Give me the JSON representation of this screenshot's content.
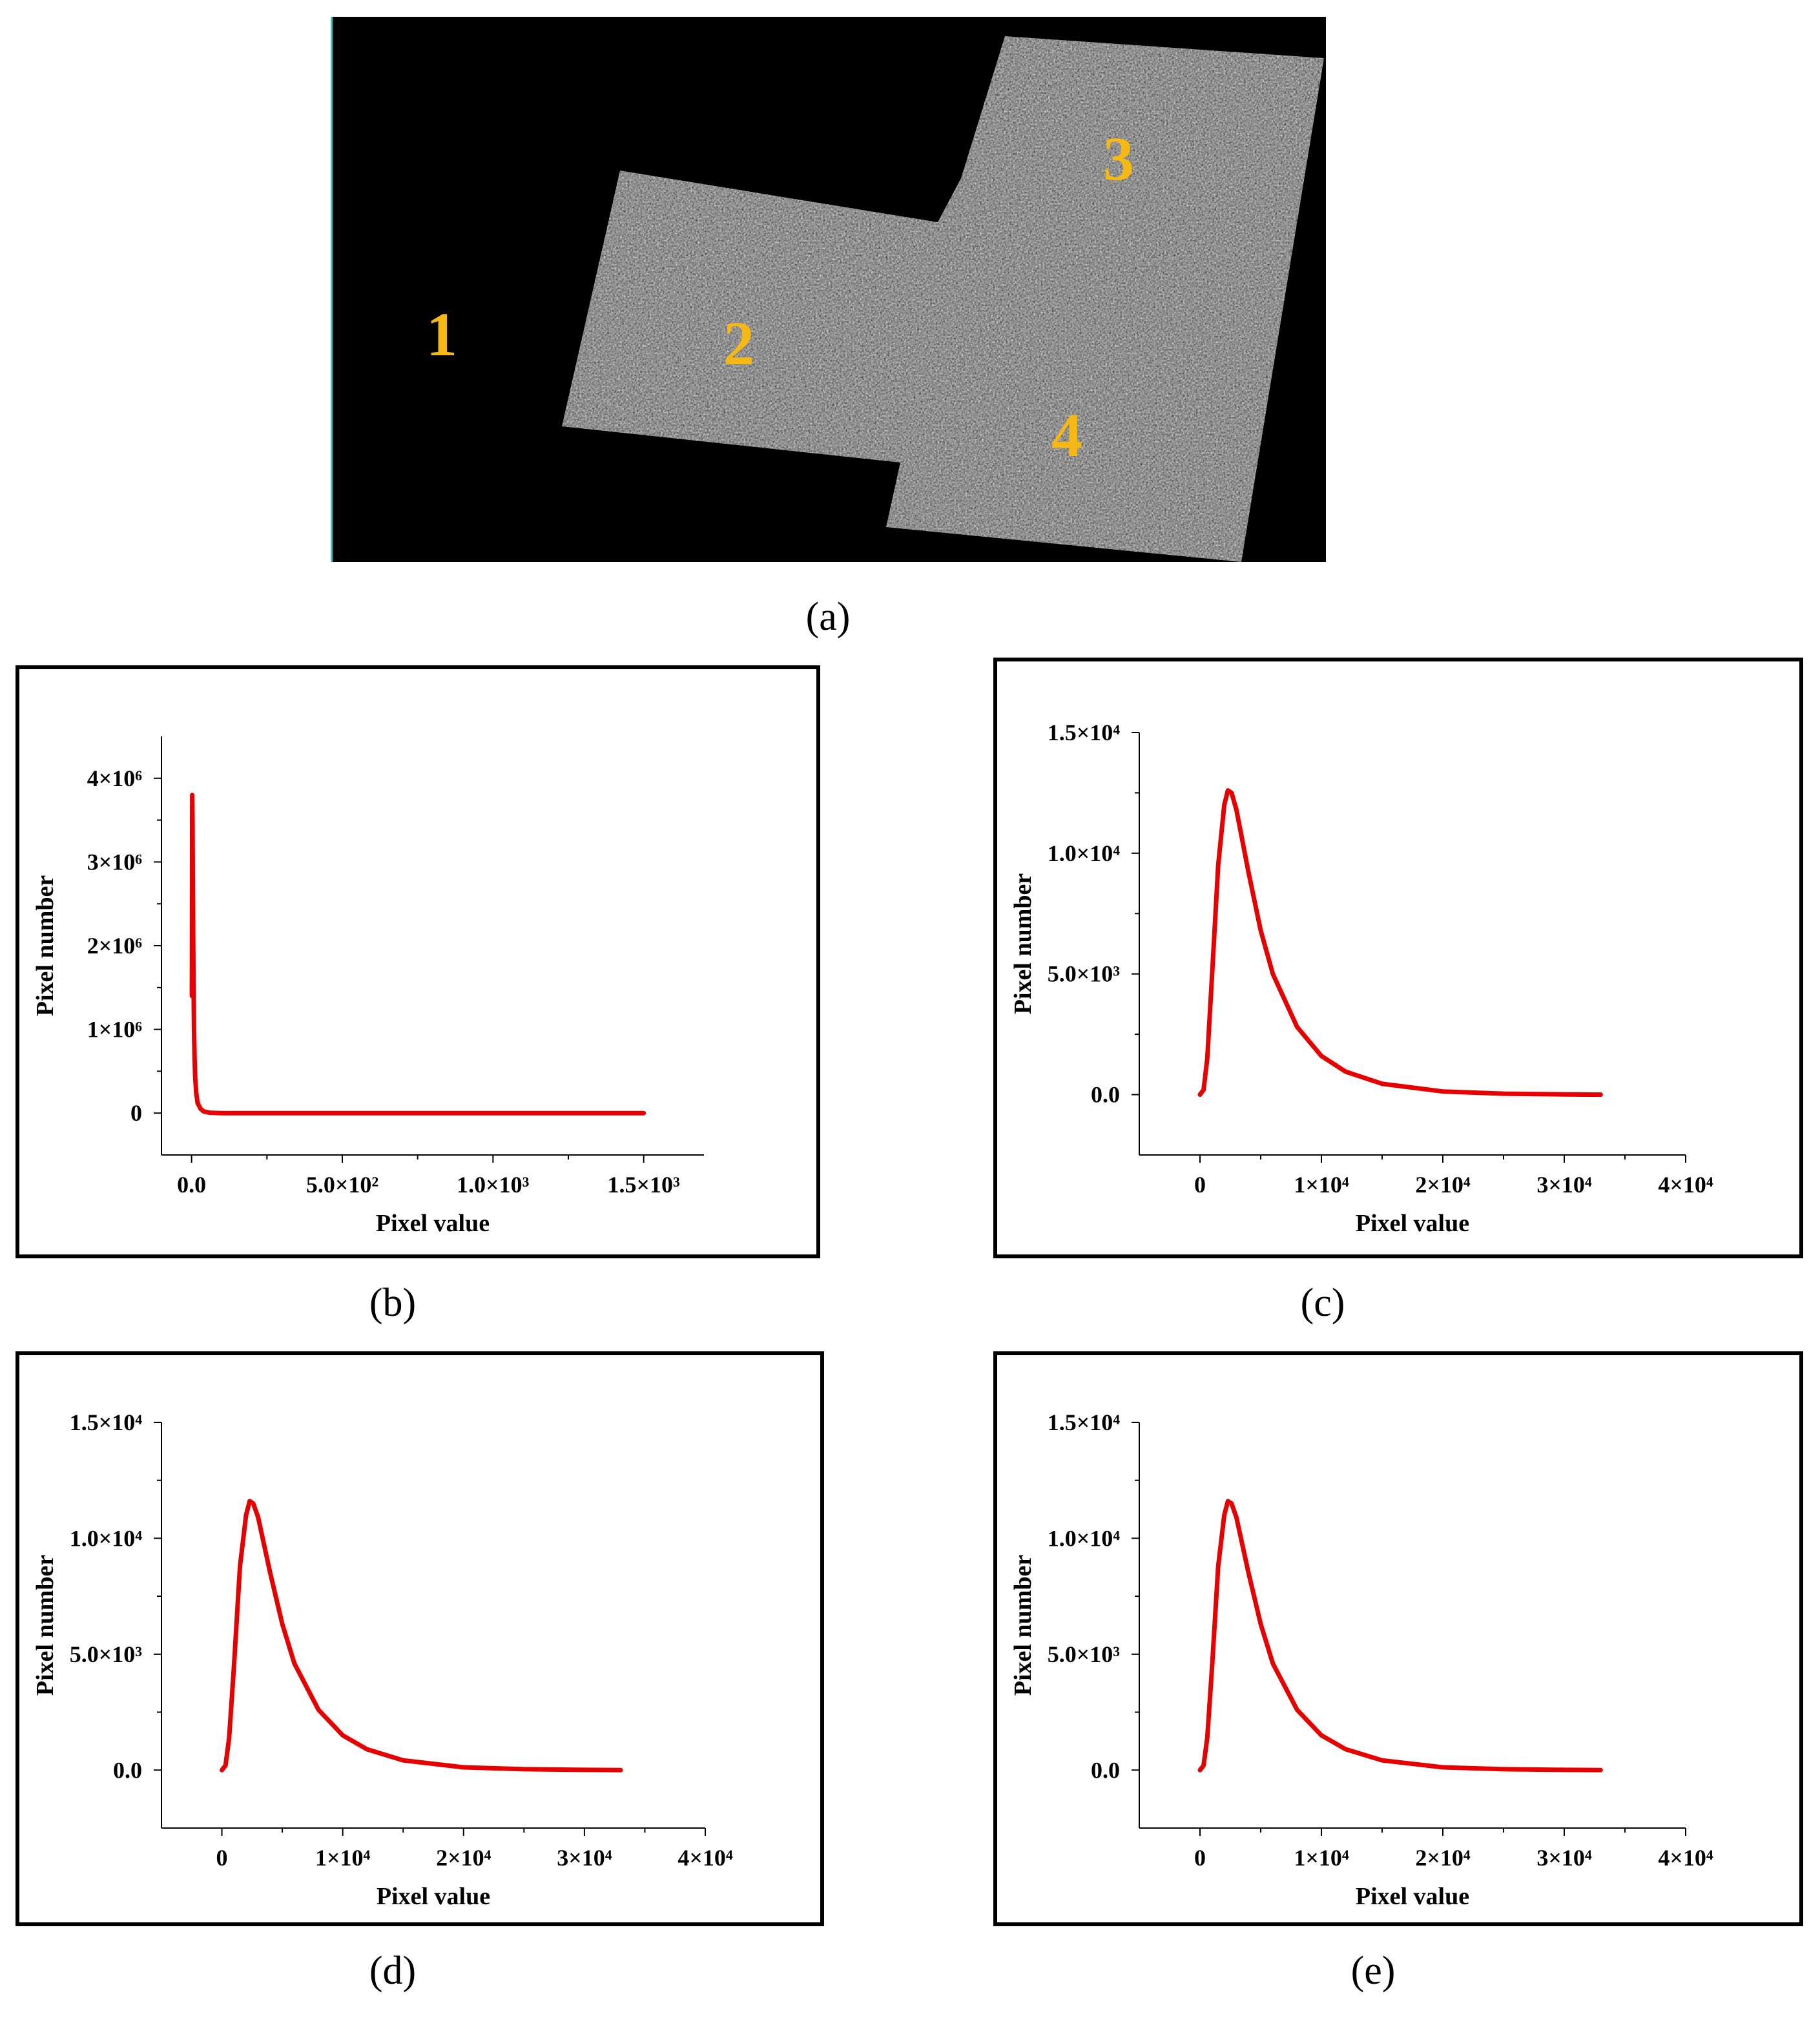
{
  "figure": {
    "captions": [
      "(a)",
      "(b)",
      "(c)",
      "(d)",
      "(e)"
    ],
    "region_labels": [
      "1",
      "2",
      "3",
      "4"
    ],
    "label_color": "#f5b814",
    "curve_color": "#e60000"
  },
  "chart_data": [
    {
      "type": "line",
      "panel": "(b)",
      "xlabel": "Pixel value",
      "ylabel": "Pixel number",
      "xlim": [
        -100,
        1700
      ],
      "ylim": [
        -500000,
        4500000
      ],
      "xticks": [
        0,
        500,
        1000,
        1500
      ],
      "xtick_labels": [
        "0.0",
        "5.0×10²",
        "1.0×10³",
        "1.5×10³"
      ],
      "yticks": [
        0,
        1000000,
        2000000,
        3000000,
        4000000
      ],
      "ytick_labels": [
        "0",
        "1×10⁶",
        "2×10⁶",
        "3×10⁶",
        "4×10⁶"
      ],
      "series": [
        {
          "x": [
            1,
            2,
            3,
            4,
            6,
            8,
            10,
            12,
            15,
            20,
            30,
            40,
            60,
            100,
            200,
            500,
            1000,
            1500
          ],
          "y": [
            1400000,
            3800000,
            3500000,
            2900000,
            1700000,
            1000000,
            650000,
            420000,
            250000,
            120000,
            50000,
            20000,
            5000,
            0,
            0,
            0,
            0,
            0
          ]
        }
      ]
    },
    {
      "type": "line",
      "panel": "(c)",
      "xlabel": "Pixel value",
      "ylabel": "Pixel number",
      "xlim": [
        -5000,
        40000
      ],
      "ylim": [
        -2500,
        15000
      ],
      "xticks": [
        0,
        10000,
        20000,
        30000,
        40000
      ],
      "xtick_labels": [
        "0",
        "1×10⁴",
        "2×10⁴",
        "3×10⁴",
        "4×10⁴"
      ],
      "yticks": [
        0,
        5000,
        10000,
        15000
      ],
      "ytick_labels": [
        "0.0",
        "5.0×10³",
        "1.0×10⁴",
        "1.5×10⁴"
      ],
      "series": [
        {
          "x": [
            0,
            300,
            600,
            1000,
            1500,
            2000,
            2300,
            2600,
            3000,
            4000,
            5000,
            6000,
            8000,
            10000,
            12000,
            15000,
            20000,
            25000,
            30000,
            33000
          ],
          "y": [
            0,
            200,
            1500,
            5000,
            9500,
            12000,
            12600,
            12500,
            11800,
            9200,
            6800,
            5000,
            2800,
            1600,
            950,
            450,
            130,
            40,
            10,
            0
          ]
        }
      ]
    },
    {
      "type": "line",
      "panel": "(d)",
      "xlabel": "Pixel value",
      "ylabel": "Pixel number",
      "xlim": [
        -5000,
        40000
      ],
      "ylim": [
        -2500,
        15000
      ],
      "xticks": [
        0,
        10000,
        20000,
        30000,
        40000
      ],
      "xtick_labels": [
        "0",
        "1×10⁴",
        "2×10⁴",
        "3×10⁴",
        "4×10⁴"
      ],
      "yticks": [
        0,
        5000,
        10000,
        15000
      ],
      "ytick_labels": [
        "0.0",
        "5.0×10³",
        "1.0×10⁴",
        "1.5×10⁴"
      ],
      "series": [
        {
          "x": [
            0,
            300,
            600,
            1000,
            1500,
            2000,
            2300,
            2600,
            3000,
            4000,
            5000,
            6000,
            8000,
            10000,
            12000,
            15000,
            20000,
            25000,
            30000,
            33000
          ],
          "y": [
            0,
            200,
            1400,
            4500,
            8800,
            11000,
            11600,
            11500,
            10900,
            8500,
            6300,
            4600,
            2600,
            1500,
            900,
            420,
            120,
            40,
            10,
            0
          ]
        }
      ]
    },
    {
      "type": "line",
      "panel": "(e)",
      "xlabel": "Pixel value",
      "ylabel": "Pixel number",
      "xlim": [
        -5000,
        40000
      ],
      "ylim": [
        -2500,
        15000
      ],
      "xticks": [
        0,
        10000,
        20000,
        30000,
        40000
      ],
      "xtick_labels": [
        "0",
        "1×10⁴",
        "2×10⁴",
        "3×10⁴",
        "4×10⁴"
      ],
      "yticks": [
        0,
        5000,
        10000,
        15000
      ],
      "ytick_labels": [
        "0.0",
        "5.0×10³",
        "1.0×10⁴",
        "1.5×10⁴"
      ],
      "series": [
        {
          "x": [
            0,
            300,
            600,
            1000,
            1500,
            2000,
            2300,
            2600,
            3000,
            4000,
            5000,
            6000,
            8000,
            10000,
            12000,
            15000,
            20000,
            25000,
            30000,
            33000
          ],
          "y": [
            0,
            200,
            1400,
            4500,
            8800,
            11000,
            11600,
            11500,
            10900,
            8500,
            6300,
            4600,
            2600,
            1500,
            900,
            420,
            120,
            40,
            10,
            0
          ]
        }
      ]
    }
  ]
}
